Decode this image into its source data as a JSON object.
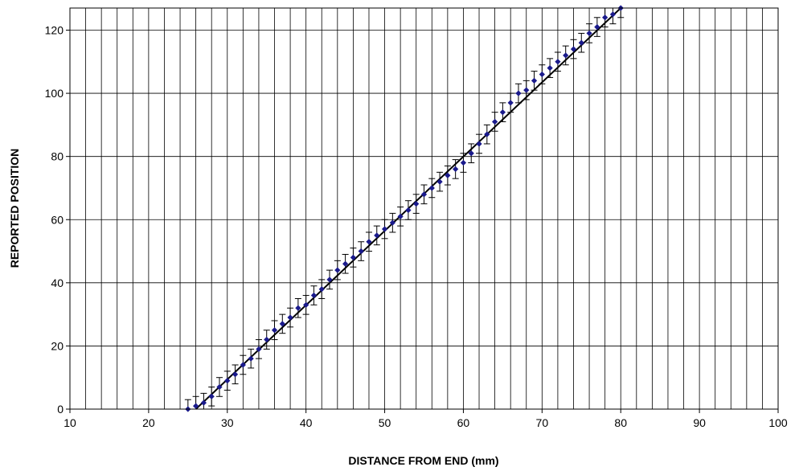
{
  "chart_data": {
    "type": "scatter",
    "title": "",
    "xlabel": "DISTANCE FROM END (mm)",
    "ylabel": "REPORTED POSITION",
    "xlim": [
      10,
      100
    ],
    "ylim": [
      0,
      127
    ],
    "x_major_ticks": [
      10,
      20,
      30,
      40,
      50,
      60,
      70,
      80,
      90,
      100
    ],
    "y_major_ticks": [
      0,
      20,
      40,
      60,
      80,
      100,
      120
    ],
    "x_minor_step": 2,
    "y_minor_step": 20,
    "grid": true,
    "marker_color": "#1a1a8c",
    "fit_line_color": "#000000",
    "series": [
      {
        "x": [
          25,
          26,
          27,
          28,
          29,
          30,
          31,
          32,
          33,
          34,
          35,
          36,
          37,
          38,
          39,
          40,
          41,
          42,
          43,
          44,
          45,
          46,
          47,
          48,
          49,
          50,
          51,
          52,
          53,
          54,
          55,
          56,
          57,
          58,
          59,
          60,
          61,
          62,
          63,
          64,
          65,
          66,
          67,
          68,
          69,
          70,
          71,
          72,
          73,
          74,
          75,
          76,
          77,
          78,
          79,
          80
        ],
        "y": [
          0,
          1,
          2,
          4,
          7,
          9,
          11,
          14,
          16,
          19,
          22,
          25,
          27,
          29,
          32,
          33,
          36,
          38,
          41,
          44,
          46,
          48,
          50,
          53,
          55,
          57,
          59,
          61,
          63,
          65,
          68,
          70,
          72,
          74,
          76,
          78,
          81,
          84,
          87,
          91,
          94,
          97,
          100,
          101,
          104,
          106,
          108,
          110,
          112,
          114,
          116,
          119,
          121,
          124,
          125,
          127
        ],
        "error": 3
      }
    ],
    "fit_line": {
      "x": [
        26,
        80
      ],
      "y": [
        0,
        128
      ]
    }
  }
}
